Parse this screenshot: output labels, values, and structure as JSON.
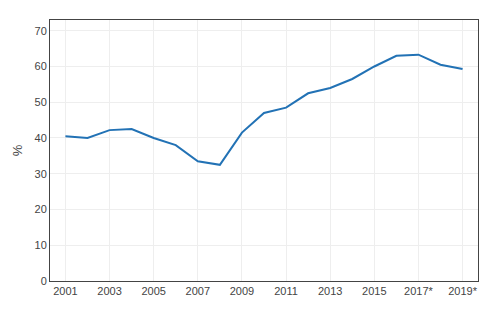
{
  "chart_data": {
    "type": "line",
    "x": [
      2001,
      2002,
      2003,
      2004,
      2005,
      2006,
      2007,
      2008,
      2009,
      2010,
      2011,
      2012,
      2013,
      2014,
      2015,
      2016,
      2017,
      2018,
      2019
    ],
    "values": [
      40.5,
      40.0,
      42.2,
      42.5,
      40.0,
      38.0,
      33.5,
      32.5,
      41.5,
      47.0,
      48.5,
      52.5,
      54.0,
      56.5,
      60.0,
      63.0,
      63.3,
      60.5,
      59.3
    ],
    "color": "#2272b5",
    "ylabel": "%",
    "xlim": [
      2000.3,
      2019.7
    ],
    "xticks": [
      2001,
      2003,
      2005,
      2007,
      2009,
      2011,
      2013,
      2015,
      {
        "value": 2017,
        "label": "2017*"
      },
      {
        "value": 2019,
        "label": "2019*"
      }
    ],
    "ylim": [
      0,
      73
    ],
    "yticks": [
      0,
      10,
      20,
      30,
      40,
      50,
      60,
      70
    ],
    "grid": true
  }
}
